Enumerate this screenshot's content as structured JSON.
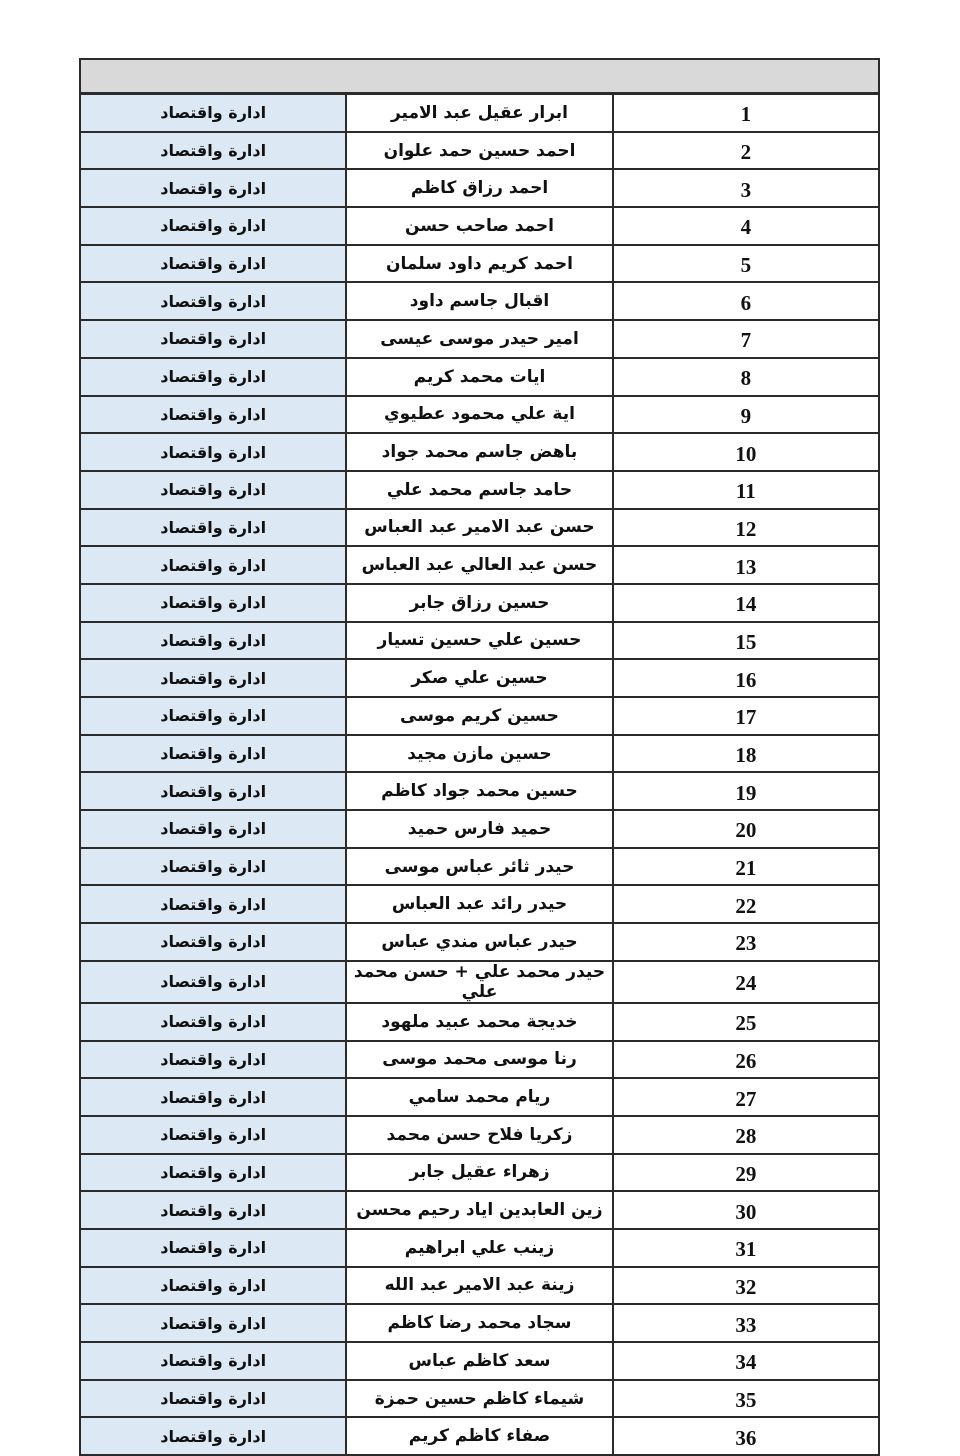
{
  "table": {
    "department": "ادارة واقتصاد",
    "header_color": "#d9d9d9",
    "department_column_color": "#dce9f5",
    "rows": [
      {
        "no": "1",
        "name": "ابرار عقيل عبد الامير"
      },
      {
        "no": "2",
        "name": "احمد حسين حمد علوان"
      },
      {
        "no": "3",
        "name": "احمد رزاق كاظم"
      },
      {
        "no": "4",
        "name": "احمد صاحب حسن"
      },
      {
        "no": "5",
        "name": "احمد كريم داود سلمان"
      },
      {
        "no": "6",
        "name": "اقبال جاسم داود"
      },
      {
        "no": "7",
        "name": "امير حيدر موسى عيسى"
      },
      {
        "no": "8",
        "name": "ايات محمد كريم"
      },
      {
        "no": "9",
        "name": "اية علي محمود عطيوي"
      },
      {
        "no": "10",
        "name": "باهض جاسم محمد جواد"
      },
      {
        "no": "11",
        "name": "حامد جاسم محمد علي"
      },
      {
        "no": "12",
        "name": "حسن عبد الامير عبد العباس"
      },
      {
        "no": "13",
        "name": "حسن عبد العالي عبد العباس"
      },
      {
        "no": "14",
        "name": "حسين رزاق جابر"
      },
      {
        "no": "15",
        "name": "حسين علي حسين تسيار"
      },
      {
        "no": "16",
        "name": "حسين علي صكر"
      },
      {
        "no": "17",
        "name": "حسين كريم موسى"
      },
      {
        "no": "18",
        "name": "حسين مازن مجيد"
      },
      {
        "no": "19",
        "name": "حسين محمد جواد كاظم"
      },
      {
        "no": "20",
        "name": "حميد فارس حميد"
      },
      {
        "no": "21",
        "name": "حيدر ثائر عباس موسى"
      },
      {
        "no": "22",
        "name": "حيدر رائد عبد العباس"
      },
      {
        "no": "23",
        "name": "حيدر عباس مندي عباس"
      },
      {
        "no": "24",
        "name": "حيدر محمد علي + حسن محمد علي"
      },
      {
        "no": "25",
        "name": "خديجة محمد عبيد ملهود"
      },
      {
        "no": "26",
        "name": "رنا موسى محمد موسى"
      },
      {
        "no": "27",
        "name": "ريام محمد سامي"
      },
      {
        "no": "28",
        "name": "زكريا فلاح حسن محمد"
      },
      {
        "no": "29",
        "name": "زهراء عقيل جابر"
      },
      {
        "no": "30",
        "name": "زين العابدين اياد رحيم محسن"
      },
      {
        "no": "31",
        "name": "زينب علي ابراهيم"
      },
      {
        "no": "32",
        "name": "زينة عبد الامير عبد الله"
      },
      {
        "no": "33",
        "name": "سجاد محمد رضا كاظم"
      },
      {
        "no": "34",
        "name": "سعد كاظم عباس"
      },
      {
        "no": "35",
        "name": "شيماء كاظم حسين حمزة"
      },
      {
        "no": "36",
        "name": "صفاء كاظم كريم"
      }
    ]
  }
}
